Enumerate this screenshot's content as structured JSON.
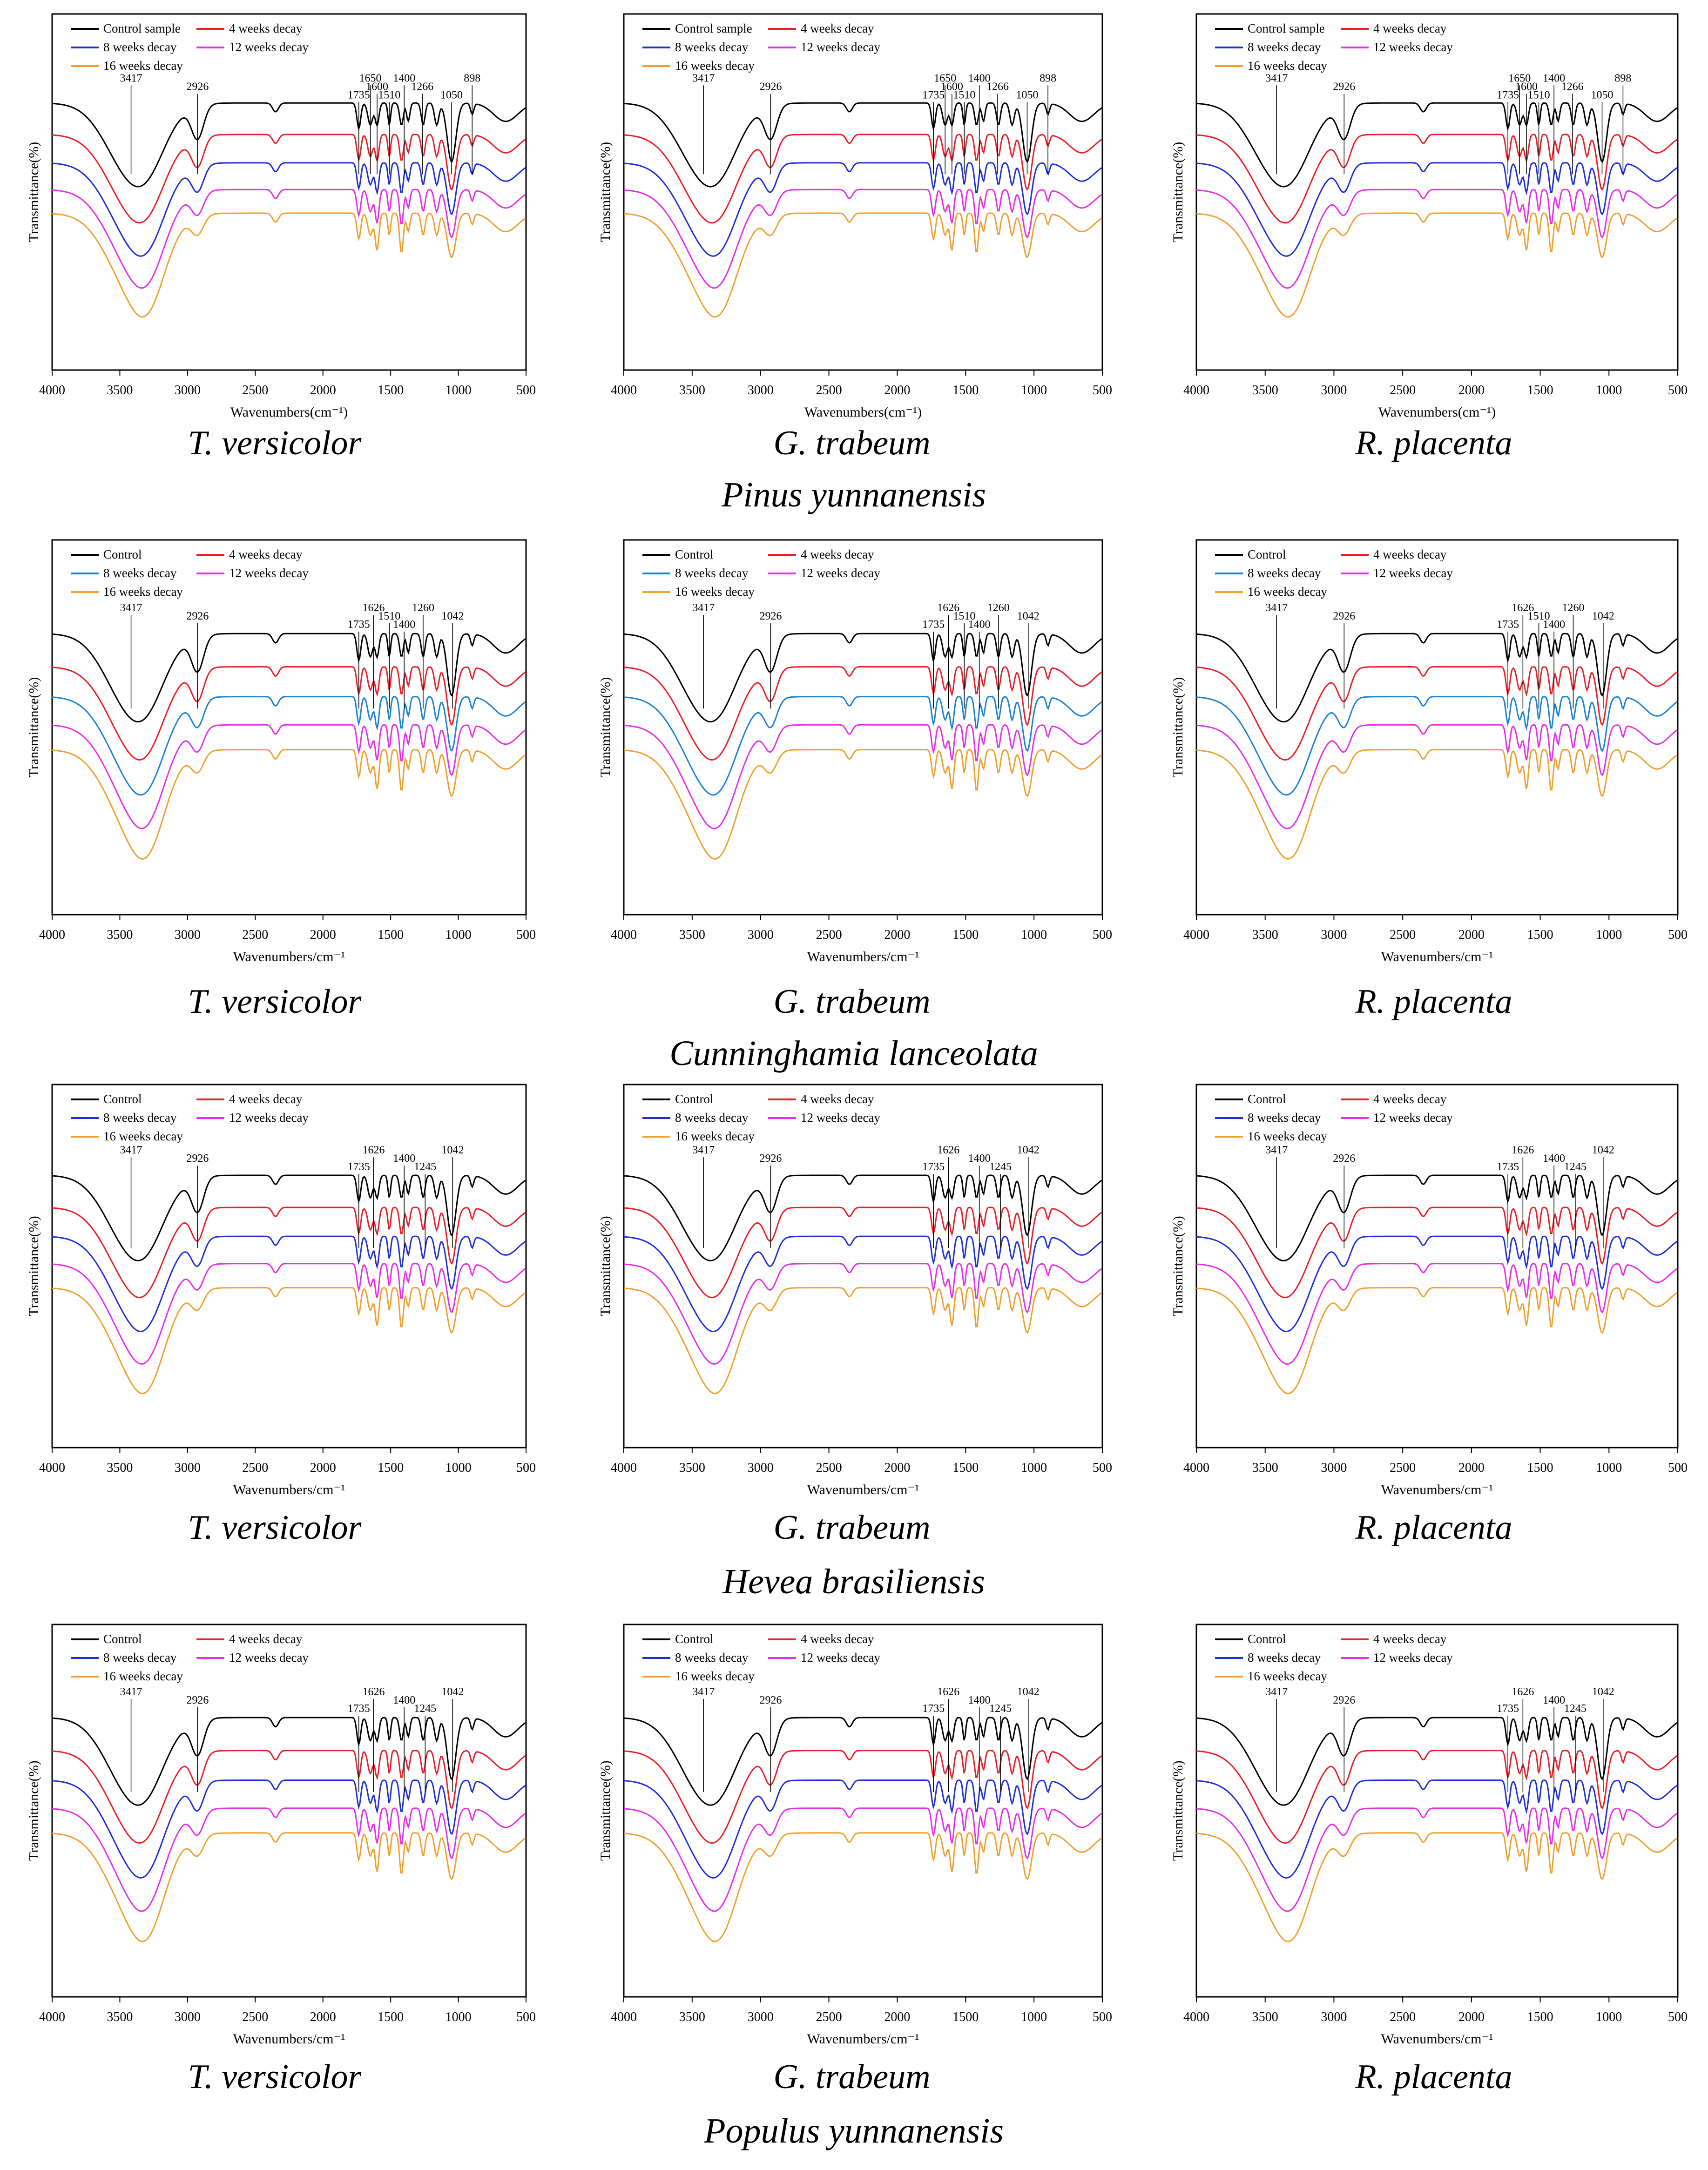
{
  "figure": {
    "rows": [
      {
        "species": "Pinus yunnanensis",
        "legend_control": "Control sample",
        "xlabel": "Wavenumbers(cm⁻¹)",
        "ylabel": "Transmittance(%)",
        "series": [
          "Control sample",
          "4 weeks decay",
          "8 weeks decay",
          "12 weeks decay",
          "16 weeks decay"
        ],
        "peaks": [
          "3417",
          "2926",
          "1735",
          "1650",
          "1600",
          "1510",
          "1400",
          "1266",
          "1050",
          "898"
        ]
      },
      {
        "species": "Cunninghamia lanceolata",
        "xlabel": "Wavenumbers/cm⁻¹",
        "ylabel": "Transmittance(%)",
        "series": [
          "Control",
          "4 weeks decay",
          "8 weeks decay",
          "12 weeks decay",
          "16 weeks decay"
        ],
        "peaks": [
          "3417",
          "2926",
          "1735",
          "1626",
          "1510",
          "1400",
          "1260",
          "1042"
        ]
      },
      {
        "species": "Hevea brasiliensis",
        "xlabel": "Wavenumbers/cm⁻¹",
        "ylabel": "Transmittance(%)",
        "series": [
          "Control",
          "4 weeks decay",
          "8 weeks decay",
          "12 weeks decay",
          "16 weeks decay"
        ],
        "peaks": [
          "3417",
          "2926",
          "1735",
          "1626",
          "1400",
          "1245",
          "1042"
        ]
      },
      {
        "species": "Populus yunnanensis",
        "xlabel": "Wavenumbers/cm⁻¹",
        "ylabel": "Transmittance(%)",
        "series": [
          "Control",
          "4 weeks decay",
          "8 weeks decay",
          "12 weeks decay",
          "16 weeks decay"
        ],
        "peaks": [
          "3417",
          "2926",
          "1735",
          "1626",
          "1400",
          "1245",
          "1042"
        ]
      }
    ],
    "fungi": [
      "T. versicolor",
      "G. trabeum",
      "R. placenta"
    ]
  },
  "chart_data": {
    "type": "line",
    "xlim": [
      4000,
      500
    ],
    "xticks": [
      "4000",
      "3500",
      "3000",
      "2500",
      "2000",
      "1500",
      "1000",
      "500"
    ],
    "colors": {
      "control": "#000000",
      "w4": "#e8202a",
      "w8": "#1f2fd6",
      "w8_alt": "#1b82d3",
      "w12": "#e530e8",
      "w16": "#f0a030"
    },
    "panels": [
      {
        "row": 0,
        "col": 0,
        "title": "T. versicolor"
      },
      {
        "row": 0,
        "col": 1,
        "title": "G. trabeum"
      },
      {
        "row": 0,
        "col": 2,
        "title": "R. placenta"
      },
      {
        "row": 1,
        "col": 0,
        "title": "T. versicolor"
      },
      {
        "row": 1,
        "col": 1,
        "title": "G. trabeum"
      },
      {
        "row": 1,
        "col": 2,
        "title": "R. placenta"
      },
      {
        "row": 2,
        "col": 0,
        "title": "T. versicolor"
      },
      {
        "row": 2,
        "col": 1,
        "title": "G. trabeum"
      },
      {
        "row": 2,
        "col": 2,
        "title": "R. placenta"
      },
      {
        "row": 3,
        "col": 0,
        "title": "T. versicolor"
      },
      {
        "row": 3,
        "col": 1,
        "title": "G. trabeum"
      },
      {
        "row": 3,
        "col": 2,
        "title": "R. placenta"
      }
    ]
  }
}
